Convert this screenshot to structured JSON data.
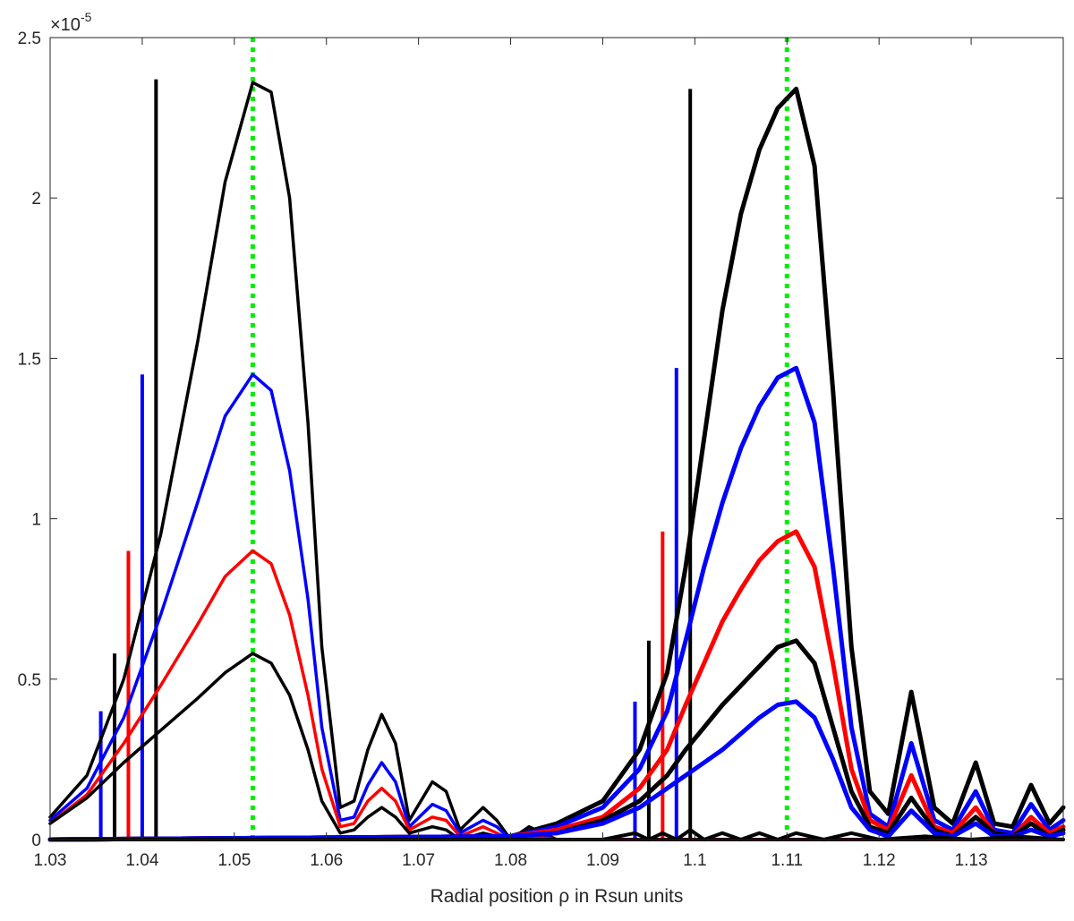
{
  "chart_data": {
    "type": "line",
    "title": "",
    "xlabel": "Radial position ρ in Rsun units",
    "ylabel": "",
    "y_multiplier_base": "×10",
    "y_multiplier_exp": "-5",
    "xlim": [
      1.03,
      1.14
    ],
    "ylim": [
      0,
      2.5
    ],
    "x_ticks": [
      1.03,
      1.04,
      1.05,
      1.06,
      1.07,
      1.08,
      1.09,
      1.1,
      1.11,
      1.12,
      1.13
    ],
    "x_tick_labels": [
      "1.03",
      "1.04",
      "1.05",
      "1.06",
      "1.07",
      "1.08",
      "1.09",
      "1.1",
      "1.11",
      "1.12",
      "1.13"
    ],
    "y_ticks": [
      0,
      0.5,
      1,
      1.5,
      2,
      2.5
    ],
    "y_tick_labels": [
      "0",
      "0.5",
      "1",
      "1.5",
      "2",
      "2.5"
    ],
    "grid": false,
    "reference_lines": [
      {
        "x": 1.052,
        "color": "#00ee00",
        "style": "dotted"
      },
      {
        "x": 1.11,
        "color": "#00ee00",
        "style": "dotted"
      }
    ],
    "markers": [
      {
        "x": 1.0355,
        "height": 0.4,
        "color": "#0000ff"
      },
      {
        "x": 1.037,
        "height": 0.58,
        "color": "#000000"
      },
      {
        "x": 1.0385,
        "height": 0.9,
        "color": "#ff0000"
      },
      {
        "x": 1.04,
        "height": 1.45,
        "color": "#0000ff"
      },
      {
        "x": 1.0415,
        "height": 2.37,
        "color": "#000000"
      },
      {
        "x": 1.0935,
        "height": 0.43,
        "color": "#0000ff"
      },
      {
        "x": 1.095,
        "height": 0.62,
        "color": "#000000"
      },
      {
        "x": 1.0965,
        "height": 0.96,
        "color": "#ff0000"
      },
      {
        "x": 1.098,
        "height": 1.47,
        "color": "#0000ff"
      },
      {
        "x": 1.0995,
        "height": 2.34,
        "color": "#000000"
      }
    ],
    "series": [
      {
        "color": "#000000",
        "width": 3.5,
        "x": [
          1.03,
          1.034,
          1.038,
          1.042,
          1.046,
          1.049,
          1.052,
          1.054,
          1.056,
          1.058,
          1.0595,
          1.0615,
          1.063,
          1.0645,
          1.066,
          1.0675,
          1.069,
          1.0715,
          1.073,
          1.0745,
          1.077,
          1.0785,
          1.08,
          1.082,
          1.085,
          1.09,
          1.14
        ],
        "y": [
          0.07,
          0.2,
          0.5,
          0.95,
          1.55,
          2.05,
          2.36,
          2.33,
          2.0,
          1.3,
          0.6,
          0.1,
          0.12,
          0.28,
          0.39,
          0.3,
          0.06,
          0.18,
          0.15,
          0.03,
          0.1,
          0.06,
          0.0,
          0.04,
          0.0,
          0.0,
          0.0
        ]
      },
      {
        "color": "#0000ff",
        "width": 3.5,
        "x": [
          1.03,
          1.034,
          1.038,
          1.042,
          1.046,
          1.049,
          1.052,
          1.054,
          1.056,
          1.058,
          1.0595,
          1.0615,
          1.063,
          1.0645,
          1.066,
          1.0675,
          1.069,
          1.0715,
          1.073,
          1.0745,
          1.077,
          1.0785,
          1.08,
          1.082,
          1.085,
          1.09,
          1.14
        ],
        "y": [
          0.06,
          0.16,
          0.38,
          0.7,
          1.05,
          1.32,
          1.45,
          1.4,
          1.15,
          0.75,
          0.35,
          0.06,
          0.07,
          0.17,
          0.24,
          0.18,
          0.04,
          0.11,
          0.09,
          0.02,
          0.06,
          0.04,
          0.0,
          0.02,
          0.0,
          0.0,
          0.0
        ]
      },
      {
        "color": "#ff0000",
        "width": 3.5,
        "x": [
          1.03,
          1.034,
          1.038,
          1.042,
          1.046,
          1.049,
          1.052,
          1.054,
          1.056,
          1.058,
          1.0595,
          1.0615,
          1.063,
          1.0645,
          1.066,
          1.0675,
          1.069,
          1.0715,
          1.073,
          1.0745,
          1.077,
          1.0785,
          1.08,
          1.082,
          1.085,
          1.09,
          1.14
        ],
        "y": [
          0.05,
          0.14,
          0.3,
          0.48,
          0.67,
          0.82,
          0.9,
          0.86,
          0.7,
          0.45,
          0.22,
          0.04,
          0.05,
          0.12,
          0.16,
          0.12,
          0.03,
          0.07,
          0.06,
          0.01,
          0.04,
          0.02,
          0.0,
          0.01,
          0.0,
          0.0,
          0.0
        ]
      },
      {
        "color": "#000000",
        "width": 3.5,
        "x": [
          1.03,
          1.034,
          1.038,
          1.042,
          1.046,
          1.049,
          1.052,
          1.054,
          1.056,
          1.058,
          1.0595,
          1.0615,
          1.063,
          1.0645,
          1.066,
          1.0675,
          1.069,
          1.0715,
          1.073,
          1.0745,
          1.077,
          1.0785,
          1.08,
          1.082,
          1.085,
          1.09,
          1.14
        ],
        "y": [
          0.05,
          0.13,
          0.24,
          0.34,
          0.44,
          0.52,
          0.58,
          0.55,
          0.45,
          0.28,
          0.12,
          0.02,
          0.03,
          0.07,
          0.1,
          0.07,
          0.02,
          0.04,
          0.03,
          0.0,
          0.02,
          0.01,
          0.0,
          0.0,
          0.0,
          0.0,
          0.0
        ]
      },
      {
        "color": "#000000",
        "width": 5,
        "x": [
          1.03,
          1.08,
          1.085,
          1.09,
          1.094,
          1.097,
          1.099,
          1.101,
          1.103,
          1.105,
          1.107,
          1.109,
          1.111,
          1.113,
          1.115,
          1.117,
          1.119,
          1.121,
          1.1235,
          1.126,
          1.128,
          1.1305,
          1.1325,
          1.1345,
          1.1365,
          1.1385,
          1.14
        ],
        "y": [
          0.0,
          0.01,
          0.05,
          0.12,
          0.28,
          0.52,
          0.85,
          1.25,
          1.65,
          1.95,
          2.15,
          2.28,
          2.34,
          2.1,
          1.4,
          0.6,
          0.15,
          0.08,
          0.46,
          0.1,
          0.05,
          0.24,
          0.05,
          0.04,
          0.17,
          0.05,
          0.1
        ]
      },
      {
        "color": "#0000ff",
        "width": 5,
        "x": [
          1.03,
          1.08,
          1.085,
          1.09,
          1.094,
          1.097,
          1.099,
          1.101,
          1.103,
          1.105,
          1.107,
          1.109,
          1.111,
          1.113,
          1.115,
          1.117,
          1.119,
          1.121,
          1.1235,
          1.126,
          1.128,
          1.1305,
          1.1325,
          1.1345,
          1.1365,
          1.1385,
          1.14
        ],
        "y": [
          0.0,
          0.01,
          0.04,
          0.1,
          0.22,
          0.4,
          0.62,
          0.85,
          1.05,
          1.22,
          1.35,
          1.44,
          1.47,
          1.3,
          0.85,
          0.35,
          0.08,
          0.04,
          0.3,
          0.06,
          0.03,
          0.15,
          0.03,
          0.02,
          0.11,
          0.03,
          0.06
        ]
      },
      {
        "color": "#ff0000",
        "width": 5,
        "x": [
          1.03,
          1.08,
          1.085,
          1.09,
          1.094,
          1.097,
          1.099,
          1.101,
          1.103,
          1.105,
          1.107,
          1.109,
          1.111,
          1.113,
          1.115,
          1.117,
          1.119,
          1.121,
          1.1235,
          1.126,
          1.128,
          1.1305,
          1.1325,
          1.1345,
          1.1365,
          1.1385,
          1.14
        ],
        "y": [
          0.0,
          0.01,
          0.03,
          0.07,
          0.16,
          0.28,
          0.42,
          0.55,
          0.68,
          0.78,
          0.87,
          0.93,
          0.96,
          0.85,
          0.55,
          0.22,
          0.06,
          0.03,
          0.2,
          0.04,
          0.02,
          0.1,
          0.02,
          0.01,
          0.07,
          0.02,
          0.04
        ]
      },
      {
        "color": "#000000",
        "width": 5,
        "x": [
          1.03,
          1.08,
          1.085,
          1.09,
          1.094,
          1.097,
          1.099,
          1.101,
          1.103,
          1.105,
          1.107,
          1.109,
          1.111,
          1.113,
          1.115,
          1.117,
          1.119,
          1.121,
          1.1235,
          1.126,
          1.128,
          1.1305,
          1.1325,
          1.1345,
          1.1365,
          1.1385,
          1.14
        ],
        "y": [
          0.0,
          0.01,
          0.02,
          0.06,
          0.12,
          0.2,
          0.28,
          0.35,
          0.42,
          0.48,
          0.54,
          0.6,
          0.62,
          0.55,
          0.35,
          0.15,
          0.04,
          0.02,
          0.13,
          0.03,
          0.01,
          0.07,
          0.02,
          0.01,
          0.05,
          0.01,
          0.03
        ]
      },
      {
        "color": "#0000ff",
        "width": 5,
        "x": [
          1.03,
          1.08,
          1.085,
          1.09,
          1.094,
          1.097,
          1.099,
          1.101,
          1.103,
          1.105,
          1.107,
          1.109,
          1.111,
          1.113,
          1.115,
          1.117,
          1.119,
          1.121,
          1.1235,
          1.126,
          1.128,
          1.1305,
          1.1325,
          1.1345,
          1.1365,
          1.1385,
          1.14
        ],
        "y": [
          0.0,
          0.01,
          0.02,
          0.05,
          0.1,
          0.16,
          0.2,
          0.24,
          0.28,
          0.33,
          0.38,
          0.42,
          0.43,
          0.38,
          0.25,
          0.1,
          0.03,
          0.01,
          0.09,
          0.02,
          0.01,
          0.05,
          0.01,
          0.01,
          0.03,
          0.01,
          0.02
        ]
      },
      {
        "color": "#000000",
        "width": 4,
        "x": [
          1.03,
          1.06,
          1.09,
          1.0935,
          1.095,
          1.0965,
          1.098,
          1.0995,
          1.101,
          1.103,
          1.105,
          1.107,
          1.109,
          1.111,
          1.114,
          1.117,
          1.12,
          1.125,
          1.13,
          1.135,
          1.14
        ],
        "y": [
          0.0,
          0.0,
          0.0,
          0.02,
          0.0,
          0.02,
          0.0,
          0.03,
          0.0,
          0.02,
          0.0,
          0.02,
          0.0,
          0.02,
          0.0,
          0.02,
          0.0,
          0.01,
          0.0,
          0.01,
          0.0
        ]
      }
    ]
  }
}
